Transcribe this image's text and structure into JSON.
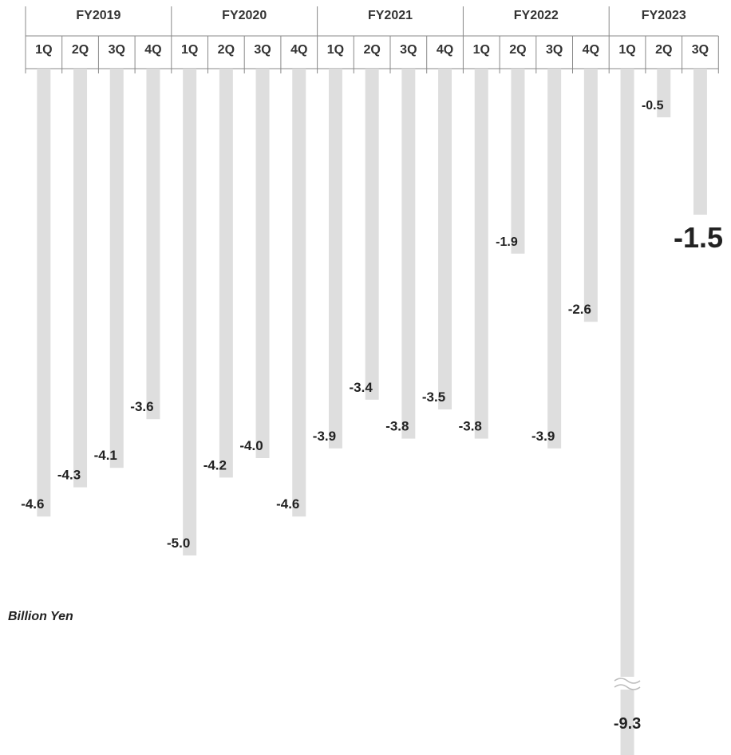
{
  "chart_data": {
    "type": "bar",
    "unit_label": "Billion Yen",
    "fiscal_years": [
      {
        "label": "FY2019",
        "quarters": [
          "1Q",
          "2Q",
          "3Q",
          "4Q"
        ]
      },
      {
        "label": "FY2020",
        "quarters": [
          "1Q",
          "2Q",
          "3Q",
          "4Q"
        ]
      },
      {
        "label": "FY2021",
        "quarters": [
          "1Q",
          "2Q",
          "3Q",
          "4Q"
        ]
      },
      {
        "label": "FY2022",
        "quarters": [
          "1Q",
          "2Q",
          "3Q",
          "4Q"
        ]
      },
      {
        "label": "FY2023",
        "quarters": [
          "1Q",
          "2Q",
          "3Q"
        ]
      }
    ],
    "values": [
      -4.6,
      -4.3,
      -4.1,
      -3.6,
      -5.0,
      -4.2,
      -4.0,
      -4.6,
      -3.9,
      -3.4,
      -3.8,
      -3.5,
      -3.8,
      -1.9,
      -3.9,
      -2.6,
      -9.3,
      -0.5,
      -1.5
    ],
    "value_labels": [
      "-4.6",
      "-4.3",
      "-4.1",
      "-3.6",
      "-5.0",
      "-4.2",
      "-4.0",
      "-4.6",
      "-3.9",
      "-3.4",
      "-3.8",
      "-3.5",
      "-3.8",
      "-1.9",
      "-3.9",
      "-2.6",
      "-9.3",
      "-0.5",
      "-1.5"
    ],
    "highlighted_index": 18,
    "broken_axis_index": 16,
    "bar_color": "#dedede",
    "axis_color": "#888888"
  }
}
